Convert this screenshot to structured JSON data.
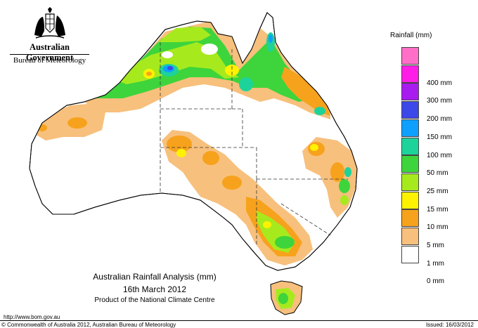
{
  "header": {
    "government": "Australian Government",
    "bureau": "Bureau of Meteorology"
  },
  "legend": {
    "title": "Rainfall (mm)",
    "classes": [
      {
        "label": "",
        "color": "#ff6fc8"
      },
      {
        "label": "400 mm",
        "color": "#ff1ee6"
      },
      {
        "label": "300 mm",
        "color": "#a81cf0"
      },
      {
        "label": "200 mm",
        "color": "#3c48e8"
      },
      {
        "label": "150 mm",
        "color": "#0ea0ff"
      },
      {
        "label": "100 mm",
        "color": "#1ed39a"
      },
      {
        "label": "50 mm",
        "color": "#3ed43c"
      },
      {
        "label": "25 mm",
        "color": "#a6ea1e"
      },
      {
        "label": "15 mm",
        "color": "#fff200"
      },
      {
        "label": "10 mm",
        "color": "#f7a21c"
      },
      {
        "label": "5 mm",
        "color": "#f7c07c"
      },
      {
        "label": "1 mm",
        "color": "#ffffff"
      },
      {
        "label": "0 mm",
        "color": null
      }
    ]
  },
  "title": {
    "line1": "Australian Rainfall Analysis (mm)",
    "line2": "16th March 2012",
    "line3": "Product of the National Climate Centre"
  },
  "footer": {
    "url": "http://www.bom.gov.au",
    "copyright": "© Commonwealth of Australia 2012, Australian Bureau of Meteorology",
    "issued": "Issued: 16/03/2012"
  }
}
